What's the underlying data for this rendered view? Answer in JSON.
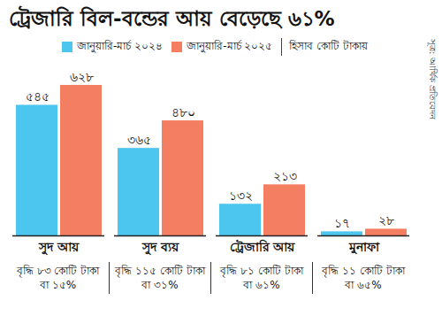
{
  "chart_data": {
    "type": "bar",
    "title": "ট্রেজারি বিল-বন্ডের আয় বেড়েছে ৬১%",
    "categories": [
      "সুদ আয়",
      "সুদ ব্যয়",
      "ট্রেজারি আয়",
      "মুনাফা"
    ],
    "series": [
      {
        "name": "জানুয়ারি-মার্চ ২০২৪",
        "color": "#4cc6ef",
        "values": [
          545,
          365,
          132,
          17
        ],
        "value_labels": [
          "৫৪৫",
          "৩৬৫",
          "১৩২",
          "১৭"
        ]
      },
      {
        "name": "জানুয়ারি-মার্চ ২০২৫",
        "color": "#f47e62",
        "values": [
          628,
          480,
          213,
          28
        ],
        "value_labels": [
          "৬২৮",
          "৪৮০",
          "২১৩",
          "২৮"
        ]
      }
    ],
    "annotations": [
      "বৃদ্ধি ৮৩ কোটি টাকা বা ১৫%",
      "বৃদ্ধি ১১৫ কোটি টাকা বা ৩১%",
      "বৃদ্ধি ৮১ কোটি টাকা বা ৬১%",
      "বৃদ্ধি ১১ কোটি টাকা বা ৬৫%"
    ],
    "unit_note": "হিসাব কোটি টাকায়",
    "source": "সূত্র: আর্থিক প্রতিবেদন",
    "ylim": [
      0,
      650
    ],
    "data_labels": true,
    "legend": "top",
    "tick_labels": "x",
    "grid": false
  }
}
